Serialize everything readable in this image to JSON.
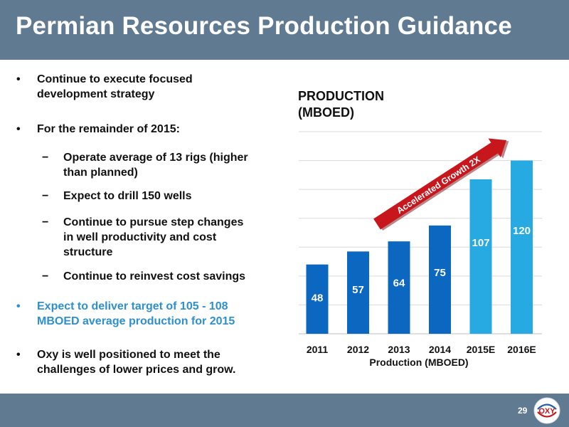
{
  "header": {
    "title": "Permian Resources Production Guidance"
  },
  "bullets": [
    {
      "marker": "•",
      "lines": [
        "Continue to execute focused",
        "development strategy"
      ],
      "level": 1,
      "accent": false
    },
    {
      "marker": "•",
      "lines": [
        "For the remainder of 2015:"
      ],
      "level": 1,
      "accent": false
    },
    {
      "marker": "−",
      "lines": [
        "Operate average of 13 rigs (higher",
        "than planned)"
      ],
      "level": 2,
      "accent": false
    },
    {
      "marker": "−",
      "lines": [
        "Expect to drill 150 wells"
      ],
      "level": 2,
      "accent": false
    },
    {
      "marker": "−",
      "lines": [
        "Continue to pursue step changes",
        "in well productivity and cost",
        "structure"
      ],
      "level": 2,
      "accent": false
    },
    {
      "marker": "−",
      "lines": [
        "Continue to reinvest cost savings"
      ],
      "level": 2,
      "accent": false
    },
    {
      "marker": "•",
      "lines": [
        "Expect to deliver target of 105 - 108",
        "MBOED average production for 2015"
      ],
      "level": 1,
      "accent": true
    },
    {
      "marker": "•",
      "lines": [
        "Oxy is well positioned to meet the",
        "challenges of lower prices and grow."
      ],
      "level": 1,
      "accent": false
    }
  ],
  "chart_title_lines": [
    "PRODUCTION",
    "(MBOED)"
  ],
  "chart_data": {
    "type": "bar",
    "categories": [
      "2011",
      "2012",
      "2013",
      "2014",
      "2015E",
      "2016E"
    ],
    "values": [
      48,
      57,
      64,
      75,
      107,
      120
    ],
    "xlabel": "Production (MBOED)",
    "ylabel": "",
    "ylim": [
      0,
      140
    ],
    "grid": true,
    "colors": [
      "#0b67bf",
      "#0b67bf",
      "#0b67bf",
      "#0b67bf",
      "#27aae1",
      "#27aae1"
    ],
    "annotation": "Accelerated Growth 2X"
  },
  "footer": {
    "page_number": "29",
    "logo_text": "OXY"
  },
  "colors": {
    "header_bg": "#5f7a91",
    "accent_text": "#2e8fd1",
    "actual_bar": "#0b67bf",
    "estimate_bar": "#27aae1",
    "arrow": "#c8161d"
  }
}
